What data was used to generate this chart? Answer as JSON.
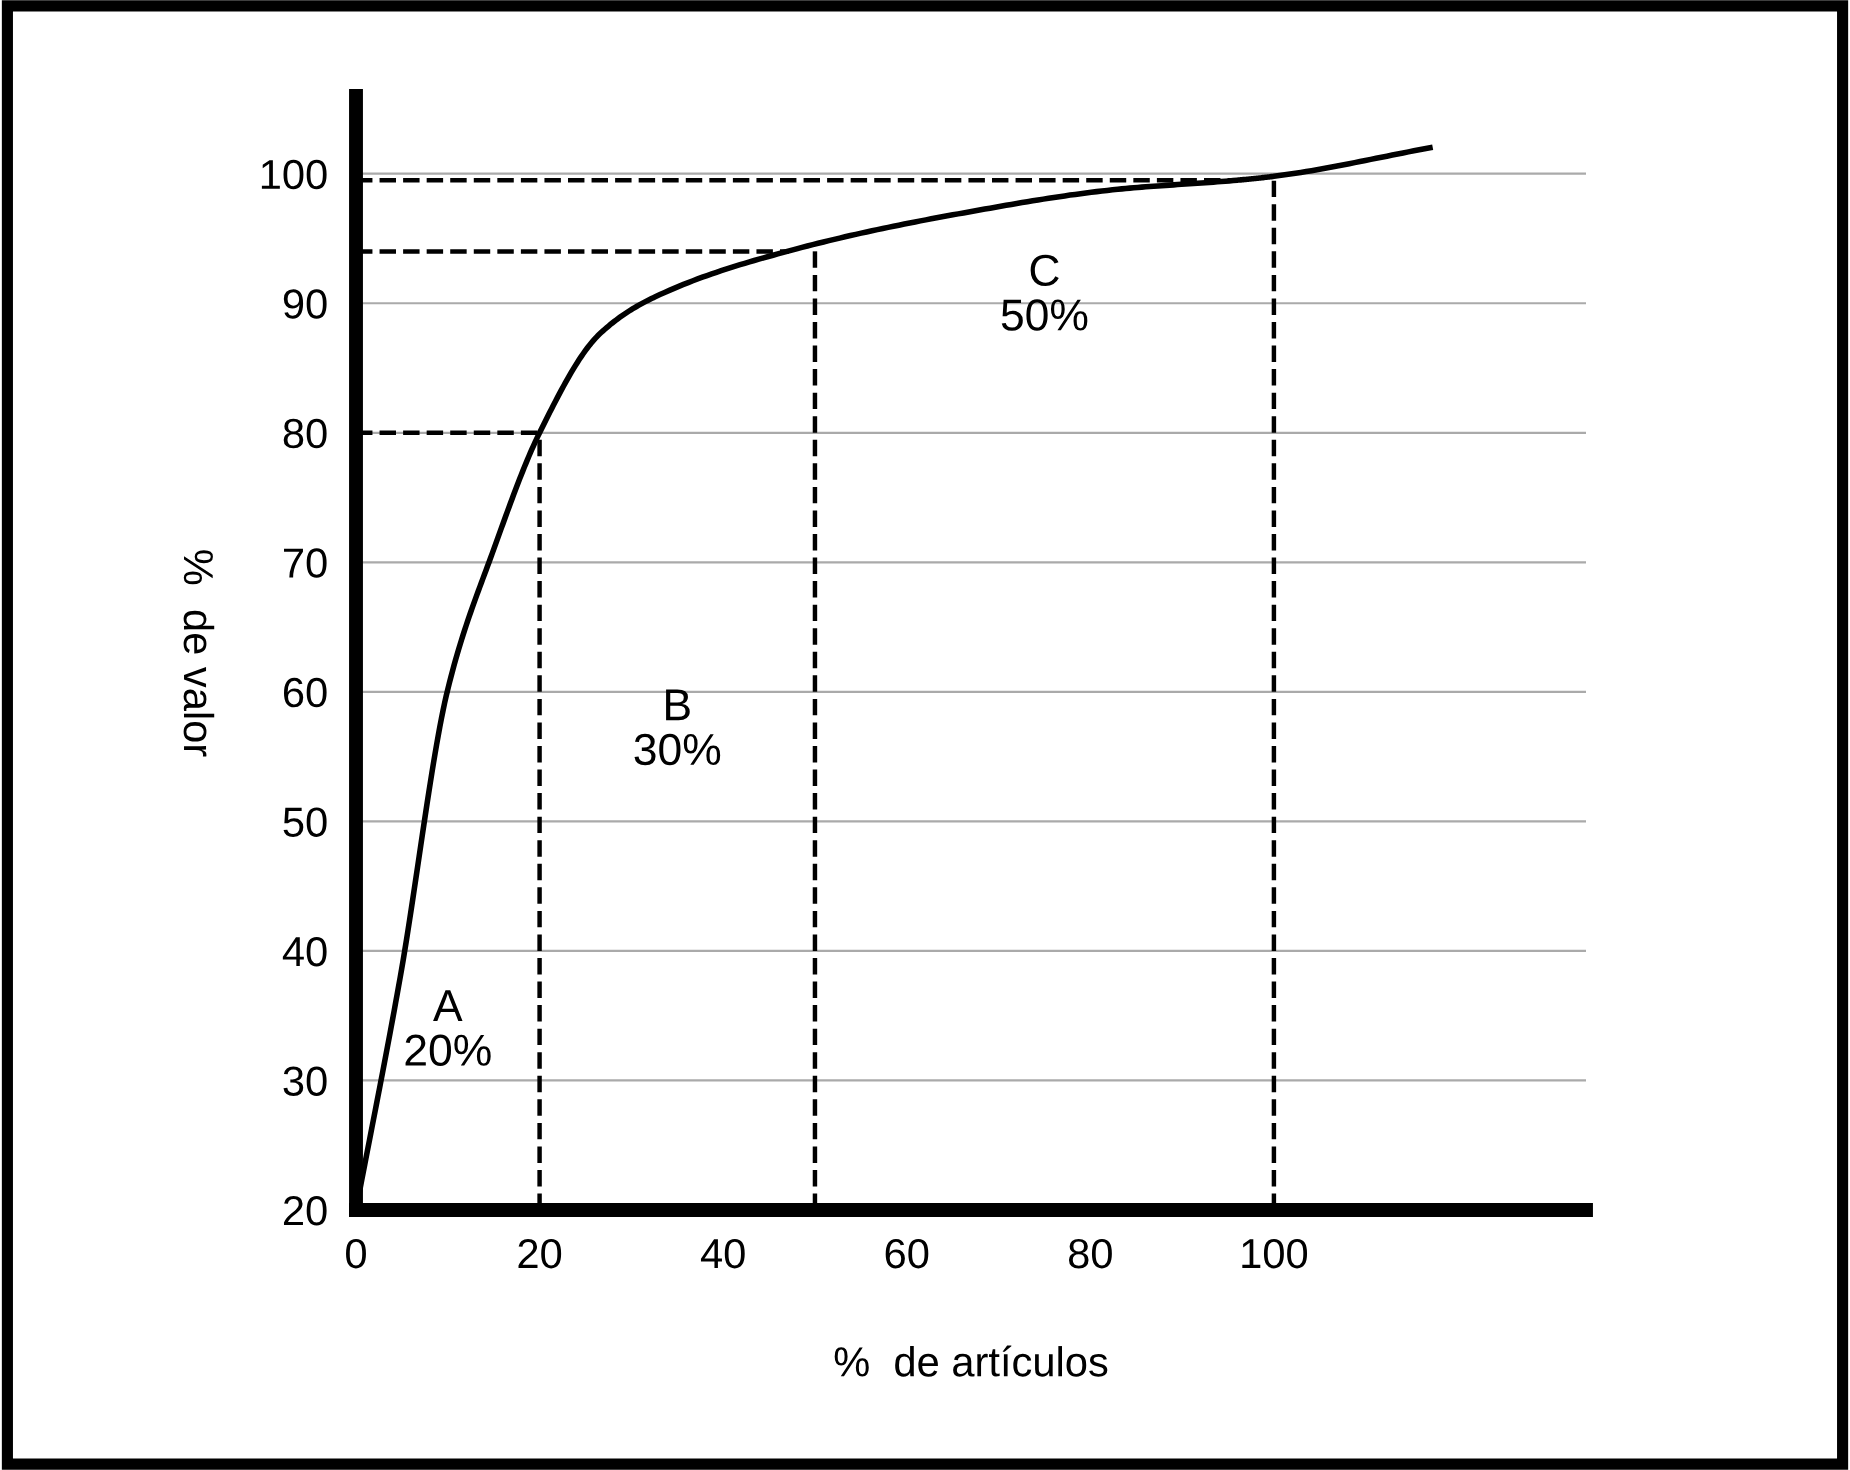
{
  "chart_data": {
    "type": "line",
    "xlabel": "%  de artículos",
    "ylabel": "%  de valor",
    "x": [
      0,
      4.8,
      10,
      15,
      20,
      26.5,
      32.6,
      48,
      65.6,
      83,
      96,
      100,
      117
    ],
    "series": [
      {
        "color": "#000000",
        "values": [
          20,
          37.9,
          60.2,
          71,
          80,
          87.6,
          90.5,
          94.2,
          96.9,
          98.8,
          99.5,
          99.8,
          102
        ]
      }
    ],
    "xlim": [
      0,
      134
    ],
    "ylim": [
      20,
      106
    ],
    "xticks": [
      0,
      20,
      40,
      60,
      80,
      100
    ],
    "yticks": [
      20,
      30,
      40,
      50,
      60,
      70,
      80,
      90,
      100
    ],
    "grid": "y",
    "marker": "none",
    "line_style": "solid",
    "ref_lines": [
      {
        "axis": "x",
        "value": 20,
        "line_style": "dashed",
        "color": "#000000"
      },
      {
        "axis": "x",
        "value": 50,
        "line_style": "dashed",
        "color": "#000000"
      },
      {
        "axis": "x",
        "value": 100,
        "line_style": "dashed",
        "color": "#000000"
      },
      {
        "axis": "y",
        "value": 80,
        "line_style": "dashed",
        "color": "#000000"
      },
      {
        "axis": "y",
        "value": 94,
        "line_style": "dashed",
        "color": "#000000"
      },
      {
        "axis": "y",
        "value": 99.5,
        "line_style": "dashed",
        "color": "#000000"
      }
    ],
    "annotations": [
      "A\n20%",
      "B\n30%",
      "C\n50%"
    ]
  }
}
